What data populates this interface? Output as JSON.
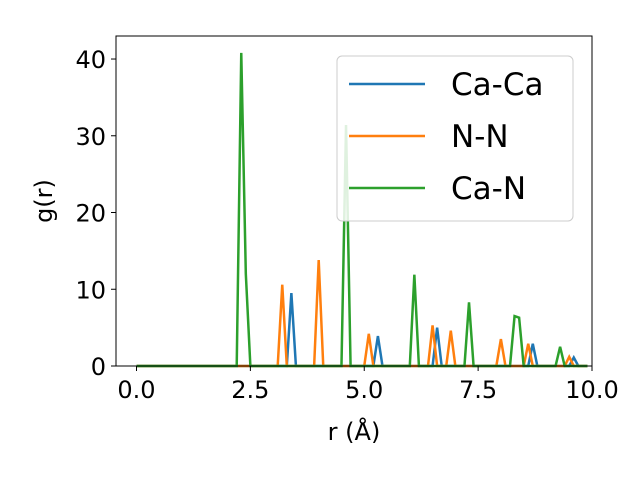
{
  "chart_data": {
    "type": "line",
    "title": "",
    "xlabel": "r (Å)",
    "ylabel": "g(r)",
    "xlim": [
      -0.45,
      10.0
    ],
    "ylim": [
      0,
      43
    ],
    "xticks": [
      "0.0",
      "2.5",
      "5.0",
      "7.5",
      "10.0"
    ],
    "yticks": [
      "0",
      "10",
      "20",
      "30",
      "40"
    ],
    "grid": false,
    "legend_position": "top-right",
    "series": [
      {
        "name": "Ca-Ca",
        "color": "#1f77b4",
        "points": [
          [
            0.0,
            0
          ],
          [
            3.3,
            0
          ],
          [
            3.4,
            9.5
          ],
          [
            3.5,
            0
          ],
          [
            5.2,
            0
          ],
          [
            5.3,
            3.9
          ],
          [
            5.4,
            0
          ],
          [
            6.5,
            0
          ],
          [
            6.6,
            5.0
          ],
          [
            6.7,
            0
          ],
          [
            8.6,
            0
          ],
          [
            8.7,
            2.9
          ],
          [
            8.8,
            0
          ],
          [
            9.5,
            0
          ],
          [
            9.6,
            1.1
          ],
          [
            9.7,
            0
          ],
          [
            9.9,
            0
          ]
        ]
      },
      {
        "name": "N-N",
        "color": "#ff7f0e",
        "points": [
          [
            0.0,
            0
          ],
          [
            3.1,
            0
          ],
          [
            3.2,
            10.6
          ],
          [
            3.3,
            0
          ],
          [
            3.9,
            0
          ],
          [
            4.0,
            13.8
          ],
          [
            4.1,
            0
          ],
          [
            5.0,
            0
          ],
          [
            5.1,
            4.2
          ],
          [
            5.2,
            0
          ],
          [
            6.4,
            0
          ],
          [
            6.5,
            5.3
          ],
          [
            6.6,
            0
          ],
          [
            6.8,
            0
          ],
          [
            6.9,
            4.6
          ],
          [
            7.0,
            0
          ],
          [
            7.9,
            0
          ],
          [
            8.0,
            3.5
          ],
          [
            8.1,
            0
          ],
          [
            8.5,
            0
          ],
          [
            8.6,
            2.9
          ],
          [
            8.7,
            0
          ],
          [
            9.4,
            0
          ],
          [
            9.5,
            1.2
          ],
          [
            9.6,
            0
          ],
          [
            9.9,
            0
          ]
        ]
      },
      {
        "name": "Ca-N",
        "color": "#2ca02c",
        "points": [
          [
            0.0,
            0
          ],
          [
            2.2,
            0
          ],
          [
            2.3,
            40.8
          ],
          [
            2.4,
            12.0
          ],
          [
            2.5,
            0
          ],
          [
            4.5,
            0
          ],
          [
            4.6,
            31.4
          ],
          [
            4.7,
            0
          ],
          [
            6.0,
            0
          ],
          [
            6.1,
            11.9
          ],
          [
            6.2,
            0
          ],
          [
            7.2,
            0
          ],
          [
            7.3,
            8.3
          ],
          [
            7.4,
            0
          ],
          [
            8.2,
            0
          ],
          [
            8.3,
            6.5
          ],
          [
            8.4,
            6.3
          ],
          [
            8.5,
            0
          ],
          [
            9.2,
            0
          ],
          [
            9.3,
            2.5
          ],
          [
            9.4,
            0
          ],
          [
            9.9,
            0
          ]
        ]
      }
    ]
  }
}
